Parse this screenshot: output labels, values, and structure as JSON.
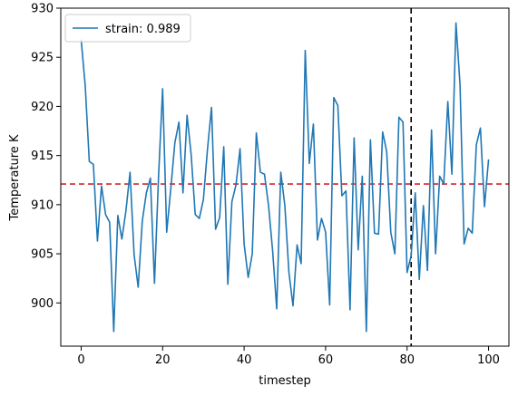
{
  "chart_data": {
    "type": "line",
    "xlabel": "timestep",
    "ylabel": "Temperature K",
    "xlim": [
      -5,
      105
    ],
    "ylim": [
      895.6,
      930
    ],
    "xticks": [
      0,
      20,
      40,
      60,
      80,
      100
    ],
    "yticks": [
      900,
      905,
      910,
      915,
      920,
      925,
      930
    ],
    "grid": false,
    "legend_position": "top-left",
    "series": [
      {
        "name": "strain: 0.989",
        "color": "#1f77b4",
        "x": [
          0,
          1,
          2,
          3,
          4,
          5,
          6,
          7,
          8,
          9,
          10,
          11,
          12,
          13,
          14,
          15,
          16,
          17,
          18,
          19,
          20,
          21,
          22,
          23,
          24,
          25,
          26,
          27,
          28,
          29,
          30,
          31,
          32,
          33,
          34,
          35,
          36,
          37,
          38,
          39,
          40,
          41,
          42,
          43,
          44,
          45,
          46,
          47,
          48,
          49,
          50,
          51,
          52,
          53,
          54,
          55,
          56,
          57,
          58,
          59,
          60,
          61,
          62,
          63,
          64,
          65,
          66,
          67,
          68,
          69,
          70,
          71,
          72,
          73,
          74,
          75,
          76,
          77,
          78,
          79,
          80,
          81,
          82,
          83,
          84,
          85,
          86,
          87,
          88,
          89,
          90,
          91,
          92,
          93,
          94,
          95,
          96,
          97,
          98,
          99,
          100
        ],
        "y": [
          926.8,
          922.1,
          914.4,
          914.1,
          906.3,
          911.9,
          909.0,
          908.2,
          897.1,
          908.9,
          906.5,
          909.4,
          913.3,
          904.9,
          901.6,
          908.3,
          911.2,
          912.7,
          902.0,
          912.9,
          921.8,
          907.2,
          911.6,
          916.3,
          918.4,
          911.2,
          919.1,
          915.1,
          909.0,
          908.6,
          910.5,
          915.6,
          919.9,
          907.5,
          908.7,
          915.9,
          901.9,
          910.3,
          912.0,
          915.7,
          906.0,
          902.6,
          905.0,
          917.3,
          913.3,
          913.1,
          909.9,
          905.3,
          899.4,
          913.3,
          909.9,
          903.1,
          899.7,
          905.9,
          904.0,
          925.7,
          914.2,
          918.2,
          906.4,
          908.6,
          907.2,
          899.8,
          920.9,
          920.1,
          910.9,
          911.4,
          899.3,
          916.8,
          905.4,
          912.9,
          897.1,
          916.6,
          907.1,
          907.0,
          917.4,
          915.4,
          907.2,
          905.0,
          918.9,
          918.4,
          903.1,
          904.8,
          911.2,
          902.4,
          909.9,
          903.3,
          917.6,
          905.0,
          912.9,
          912.1,
          920.5,
          913.1,
          928.5,
          922.2,
          906.0,
          907.6,
          907.1,
          916.1,
          917.8,
          909.8,
          914.6
        ]
      }
    ],
    "reference_lines": [
      {
        "orientation": "horizontal",
        "value": 912.1,
        "color": "#d62728",
        "style": "dashed"
      },
      {
        "orientation": "vertical",
        "value": 81,
        "color": "#000000",
        "style": "dashed"
      }
    ]
  }
}
